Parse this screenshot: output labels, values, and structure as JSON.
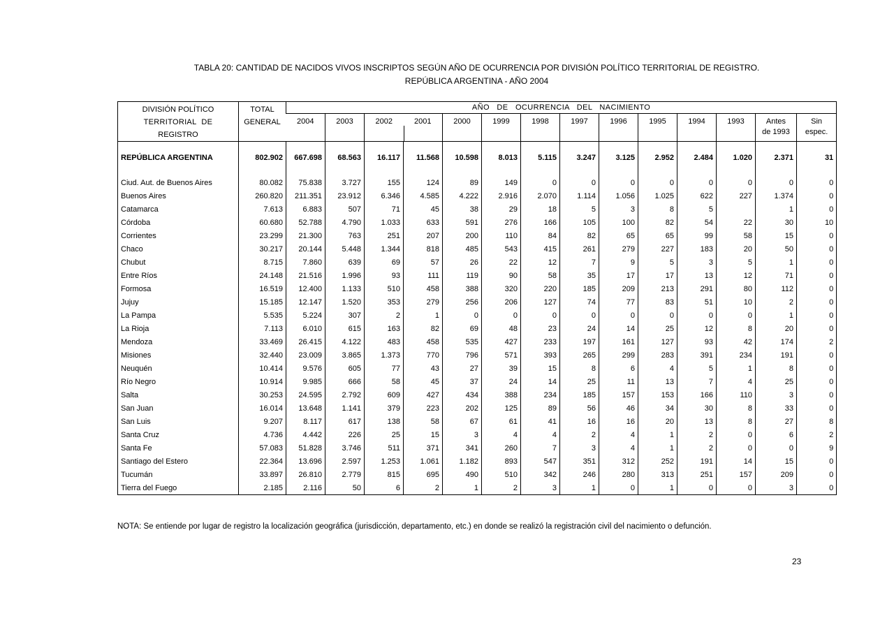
{
  "page": {
    "title_line1": "TABLA 20: CANTIDAD DE NACIDOS VIVOS INSCRIPTOS SEGÚN AÑO DE OCURRENCIA POR DIVISIÓN POLÍTICO TERRITORIAL DE REGISTRO.",
    "title_line2": "REPÚBLICA ARGENTINA -  AÑO 2004",
    "note": "NOTA: Se entiende por lugar de registro la localización geográfica (jurisdicción, departamento, etc.) en donde se realizó la registración civil del nacimiento o defunción.",
    "page_number": "23"
  },
  "table": {
    "header": {
      "division_lines": [
        "DIVISIÓN POLÍTICO",
        "TERRITORIAL  DE",
        "REGISTRO"
      ],
      "total_lines": [
        "TOTAL",
        "GENERAL"
      ],
      "year_group_label": "AÑO  DE  OCURRENCIA  DEL  NACIMIENTO",
      "year_columns": [
        "2004",
        "2003",
        "2002",
        "2001",
        "2000",
        "1999",
        "1998",
        "1997",
        "1996",
        "1995",
        "1994",
        "1993"
      ],
      "antes_lines": [
        "Antes",
        "de 1993"
      ],
      "sin_lines": [
        "Sin",
        "espec."
      ]
    },
    "total_row": {
      "label": "REPÚBLICA ARGENTINA",
      "total": "802.902",
      "values": [
        "667.698",
        "68.563",
        "16.117",
        "11.568",
        "10.598",
        "8.013",
        "5.115",
        "3.247",
        "3.125",
        "2.952",
        "2.484",
        "1.020",
        "2.371",
        "31"
      ]
    },
    "rows": [
      {
        "label": "Ciud. Aut. de  Buenos Aires",
        "total": "80.082",
        "values": [
          "75.838",
          "3.727",
          "155",
          "124",
          "89",
          "149",
          "0",
          "0",
          "0",
          "0",
          "0",
          "0",
          "0",
          "0"
        ]
      },
      {
        "label": "Buenos Aires",
        "total": "260.820",
        "values": [
          "211.351",
          "23.912",
          "6.346",
          "4.585",
          "4.222",
          "2.916",
          "2.070",
          "1.114",
          "1.056",
          "1.025",
          "622",
          "227",
          "1.374",
          "0"
        ]
      },
      {
        "label": "Catamarca",
        "total": "7.613",
        "values": [
          "6.883",
          "507",
          "71",
          "45",
          "38",
          "29",
          "18",
          "5",
          "3",
          "8",
          "5",
          "",
          "1",
          "0"
        ]
      },
      {
        "label": "Córdoba",
        "total": "60.680",
        "values": [
          "52.788",
          "4.790",
          "1.033",
          "633",
          "591",
          "276",
          "166",
          "105",
          "100",
          "82",
          "54",
          "22",
          "30",
          "10"
        ]
      },
      {
        "label": "Corrientes",
        "total": "23.299",
        "values": [
          "21.300",
          "763",
          "251",
          "207",
          "200",
          "110",
          "84",
          "82",
          "65",
          "65",
          "99",
          "58",
          "15",
          "0"
        ]
      },
      {
        "label": "Chaco",
        "total": "30.217",
        "values": [
          "20.144",
          "5.448",
          "1.344",
          "818",
          "485",
          "543",
          "415",
          "261",
          "279",
          "227",
          "183",
          "20",
          "50",
          "0"
        ]
      },
      {
        "label": "Chubut",
        "total": "8.715",
        "values": [
          "7.860",
          "639",
          "69",
          "57",
          "26",
          "22",
          "12",
          "7",
          "9",
          "5",
          "3",
          "5",
          "1",
          "0"
        ]
      },
      {
        "label": "Entre Ríos",
        "total": "24.148",
        "values": [
          "21.516",
          "1.996",
          "93",
          "111",
          "119",
          "90",
          "58",
          "35",
          "17",
          "17",
          "13",
          "12",
          "71",
          "0"
        ]
      },
      {
        "label": "Formosa",
        "total": "16.519",
        "values": [
          "12.400",
          "1.133",
          "510",
          "458",
          "388",
          "320",
          "220",
          "185",
          "209",
          "213",
          "291",
          "80",
          "112",
          "0"
        ]
      },
      {
        "label": "Jujuy",
        "total": "15.185",
        "values": [
          "12.147",
          "1.520",
          "353",
          "279",
          "256",
          "206",
          "127",
          "74",
          "77",
          "83",
          "51",
          "10",
          "2",
          "0"
        ]
      },
      {
        "label": "La Pampa",
        "total": "5.535",
        "values": [
          "5.224",
          "307",
          "2",
          "1",
          "0",
          "0",
          "0",
          "0",
          "0",
          "0",
          "0",
          "0",
          "1",
          "0"
        ]
      },
      {
        "label": "La Rioja",
        "total": "7.113",
        "values": [
          "6.010",
          "615",
          "163",
          "82",
          "69",
          "48",
          "23",
          "24",
          "14",
          "25",
          "12",
          "8",
          "20",
          "0"
        ]
      },
      {
        "label": "Mendoza",
        "total": "33.469",
        "values": [
          "26.415",
          "4.122",
          "483",
          "458",
          "535",
          "427",
          "233",
          "197",
          "161",
          "127",
          "93",
          "42",
          "174",
          "2"
        ]
      },
      {
        "label": "Misiones",
        "total": "32.440",
        "values": [
          "23.009",
          "3.865",
          "1.373",
          "770",
          "796",
          "571",
          "393",
          "265",
          "299",
          "283",
          "391",
          "234",
          "191",
          "0"
        ]
      },
      {
        "label": "Neuquén",
        "total": "10.414",
        "values": [
          "9.576",
          "605",
          "77",
          "43",
          "27",
          "39",
          "15",
          "8",
          "6",
          "4",
          "5",
          "1",
          "8",
          "0"
        ]
      },
      {
        "label": "Río Negro",
        "total": "10.914",
        "values": [
          "9.985",
          "666",
          "58",
          "45",
          "37",
          "24",
          "14",
          "25",
          "11",
          "13",
          "7",
          "4",
          "25",
          "0"
        ]
      },
      {
        "label": "Salta",
        "total": "30.253",
        "values": [
          "24.595",
          "2.792",
          "609",
          "427",
          "434",
          "388",
          "234",
          "185",
          "157",
          "153",
          "166",
          "110",
          "3",
          "0"
        ]
      },
      {
        "label": "San Juan",
        "total": "16.014",
        "values": [
          "13.648",
          "1.141",
          "379",
          "223",
          "202",
          "125",
          "89",
          "56",
          "46",
          "34",
          "30",
          "8",
          "33",
          "0"
        ]
      },
      {
        "label": "San Luis",
        "total": "9.207",
        "values": [
          "8.117",
          "617",
          "138",
          "58",
          "67",
          "61",
          "41",
          "16",
          "16",
          "20",
          "13",
          "8",
          "27",
          "8"
        ]
      },
      {
        "label": "Santa Cruz",
        "total": "4.736",
        "values": [
          "4.442",
          "226",
          "25",
          "15",
          "3",
          "4",
          "4",
          "2",
          "4",
          "1",
          "2",
          "0",
          "6",
          "2"
        ]
      },
      {
        "label": "Santa Fe",
        "total": "57.083",
        "values": [
          "51.828",
          "3.746",
          "511",
          "371",
          "341",
          "260",
          "7",
          "3",
          "4",
          "1",
          "2",
          "0",
          "0",
          "9"
        ]
      },
      {
        "label": "Santiago del Estero",
        "total": "22.364",
        "values": [
          "13.696",
          "2.597",
          "1.253",
          "1.061",
          "1.182",
          "893",
          "547",
          "351",
          "312",
          "252",
          "191",
          "14",
          "15",
          "0"
        ]
      },
      {
        "label": "Tucumán",
        "total": "33.897",
        "values": [
          "26.810",
          "2.779",
          "815",
          "695",
          "490",
          "510",
          "342",
          "246",
          "280",
          "313",
          "251",
          "157",
          "209",
          "0"
        ]
      },
      {
        "label": "Tierra del Fuego",
        "total": "2.185",
        "values": [
          "2.116",
          "50",
          "6",
          "2",
          "1",
          "2",
          "3",
          "1",
          "0",
          "1",
          "0",
          "0",
          "3",
          "0"
        ]
      }
    ]
  }
}
